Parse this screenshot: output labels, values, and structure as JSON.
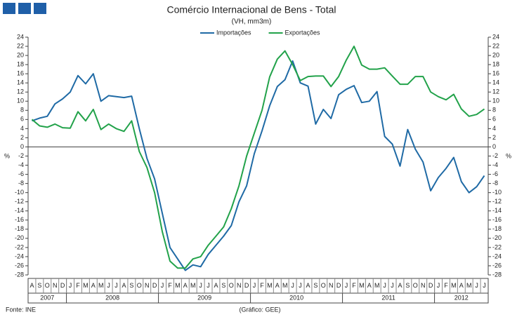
{
  "chart_data": {
    "type": "line",
    "title": "Comércio Internacional de Bens - Total",
    "subtitle": "(VH, mm3m)",
    "ylabel": "%",
    "y2label": "%",
    "source": "Fonte: INE",
    "credit": "(Gráfico: GEE)",
    "legend": "top",
    "categories": [
      "A",
      "S",
      "O",
      "N",
      "D",
      "J",
      "F",
      "M",
      "A",
      "M",
      "J",
      "J",
      "A",
      "S",
      "O",
      "N",
      "D",
      "J",
      "F",
      "M",
      "A",
      "M",
      "J",
      "J",
      "A",
      "S",
      "O",
      "N",
      "D",
      "J",
      "F",
      "M",
      "A",
      "M",
      "J",
      "J",
      "A",
      "S",
      "O",
      "N",
      "D",
      "J",
      "F",
      "M",
      "A",
      "M",
      "J",
      "J",
      "A",
      "S",
      "O",
      "N",
      "D",
      "J",
      "F",
      "M",
      "A",
      "M",
      "J",
      "J"
    ],
    "years": [
      "2007",
      "2008",
      "2009",
      "2010",
      "2011",
      "2012"
    ],
    "series": [
      {
        "name": "Importações",
        "color": "#1f6aa5",
        "values": [
          5.7,
          6.3,
          6.7,
          9.4,
          10.5,
          12,
          15.6,
          13.8,
          16,
          10,
          11.2,
          11,
          10.8,
          11.1,
          4,
          -2.5,
          -7,
          -14.5,
          -22,
          -24.5,
          -27,
          -25.8,
          -26.2,
          -23.5,
          -21.5,
          -19.5,
          -17.2,
          -12,
          -8.5,
          -1.5,
          3.5,
          9,
          13.2,
          14.7,
          18.8,
          14,
          13.3,
          5,
          8.2,
          6.2,
          11.4,
          12.6,
          13.4,
          9.7,
          10,
          12.1,
          2.3,
          0.6,
          -4.2,
          3.8,
          -0.5,
          -3.3,
          -9.6,
          -6.7,
          -4.7,
          -2.3,
          -7.6,
          -10,
          -8.7,
          -6.3
        ]
      },
      {
        "name": "Exportações",
        "color": "#22a24a",
        "values": [
          6,
          4.6,
          4.3,
          5,
          4.2,
          4.1,
          7.7,
          5.7,
          8.2,
          3.8,
          5,
          4,
          3.4,
          5.7,
          -1,
          -4.5,
          -10,
          -18.5,
          -25,
          -26.5,
          -26.5,
          -24.5,
          -24,
          -21.5,
          -19.5,
          -17.5,
          -13.5,
          -8.5,
          -2,
          3,
          8,
          15.3,
          19.2,
          21,
          18,
          14.5,
          15.4,
          15.5,
          15.5,
          13.2,
          15.4,
          19,
          22,
          17.9,
          17,
          17,
          17.3,
          15.5,
          13.7,
          13.7,
          15.4,
          15.4,
          12,
          11,
          10.3,
          11.5,
          8.3,
          6.7,
          7.1,
          8.3
        ]
      }
    ],
    "ylim": [
      -28,
      24
    ],
    "yticks": [
      -28,
      -26,
      -24,
      -22,
      -20,
      -18,
      -16,
      -14,
      -12,
      -10,
      -8,
      -6,
      -4,
      -2,
      0,
      2,
      4,
      6,
      8,
      10,
      12,
      14,
      16,
      18,
      20,
      22,
      24
    ],
    "y2lim": [
      -28,
      24
    ],
    "y2ticks": [
      -28,
      -26,
      -24,
      -22,
      -20,
      -18,
      -16,
      -14,
      -12,
      -10,
      -8,
      -6,
      -4,
      -2,
      0,
      2,
      4,
      6,
      8,
      10,
      12,
      14,
      16,
      18,
      20,
      22,
      24
    ],
    "grid": false
  }
}
